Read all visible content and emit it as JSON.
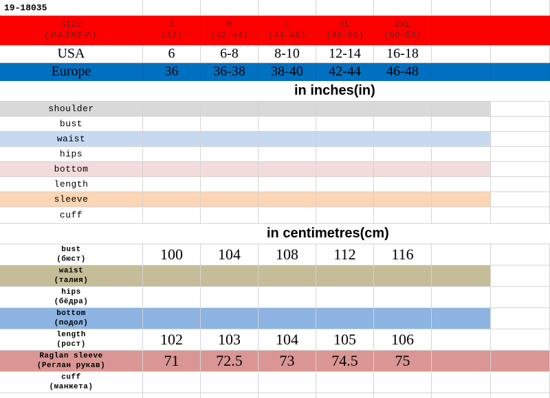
{
  "sheet_title": "19-18035",
  "colors": {
    "header_red": "#ff0000",
    "europe_blue": "#0070c0",
    "shoulder_grey": "#d9d9d9",
    "waist_light_blue": "#c5d9f1",
    "bottom_pink": "#f2dcdb",
    "sleeve_peach": "#fcd5b4",
    "waist_khaki": "#c4bd97",
    "bottom_blue": "#8db4e2",
    "raglan_rose": "#da9694"
  },
  "size_header": {
    "label": "SIZE",
    "label_sub": "(РАЗМЕР)",
    "sizes": [
      {
        "name": "S",
        "ru": "(42)"
      },
      {
        "name": "M",
        "ru": "(42-44)"
      },
      {
        "name": "L",
        "ru": "(44-46)"
      },
      {
        "name": "XL",
        "ru": "(48-50)"
      },
      {
        "name": "2XL",
        "ru": "(50-52)"
      }
    ]
  },
  "conversion": [
    {
      "label": "USA",
      "values": [
        "6",
        "6-8",
        "8-10",
        "12-14",
        "16-18"
      ]
    },
    {
      "label": "Europe",
      "values": [
        "36",
        "36-38",
        "38-40",
        "42-44",
        "46-48"
      ]
    }
  ],
  "inches_section": {
    "title": "in inches(in)",
    "rows": [
      {
        "label": "shoulder"
      },
      {
        "label": "bust"
      },
      {
        "label": "waist"
      },
      {
        "label": "hips"
      },
      {
        "label": "bottom"
      },
      {
        "label": "length"
      },
      {
        "label": "sleeve"
      },
      {
        "label": "cuff"
      }
    ]
  },
  "cm_section": {
    "title": "in centimetres(cm)",
    "rows": [
      {
        "label": "bust",
        "label_ru": "(бюст)",
        "values": [
          "100",
          "104",
          "108",
          "112",
          "116"
        ]
      },
      {
        "label": "waist",
        "label_ru": "(талия)",
        "values": [
          "",
          "",
          "",
          "",
          ""
        ]
      },
      {
        "label": "hips",
        "label_ru": "(бёдра)",
        "values": [
          "",
          "",
          "",
          "",
          ""
        ]
      },
      {
        "label": "bottom",
        "label_ru": "(подол)",
        "values": [
          "",
          "",
          "",
          "",
          ""
        ]
      },
      {
        "label": "length",
        "label_ru": "(рост)",
        "values": [
          "102",
          "103",
          "104",
          "105",
          "106"
        ]
      },
      {
        "label": "Raglan sleeve",
        "label_ru": "(Реглан рукав)",
        "values": [
          "71",
          "72.5",
          "73",
          "74.5",
          "75"
        ]
      },
      {
        "label": "cuff",
        "label_ru": "(манжета)",
        "values": [
          "",
          "",
          "",
          "",
          ""
        ]
      }
    ]
  }
}
